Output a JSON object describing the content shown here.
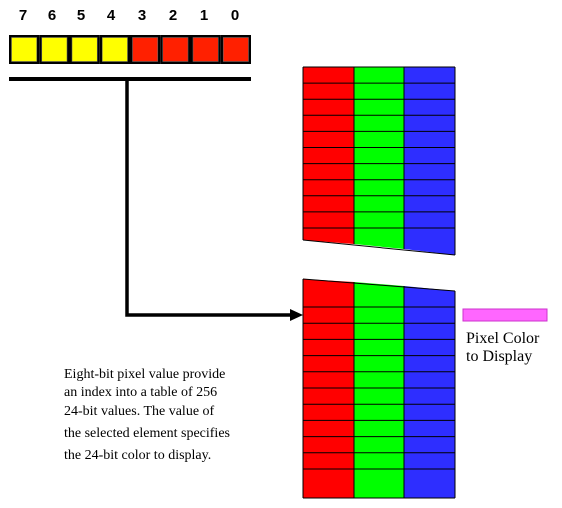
{
  "bits": {
    "numbers": [
      "7",
      "6",
      "5",
      "4",
      "3",
      "2",
      "1",
      "0"
    ],
    "cell_colors": [
      "#FFFF00",
      "#FFFF00",
      "#FFFF00",
      "#FFFF00",
      "#FF2000",
      "#FF2000",
      "#FF2000",
      "#FF2000"
    ]
  },
  "table": {
    "red": "#FF0000",
    "green": "#00FF00",
    "blue": "#2E2EFF"
  },
  "output": {
    "color": "#FF66FF",
    "label_line1": "Pixel Color",
    "label_line2": "to Display"
  },
  "description": {
    "lines": [
      "Eight-bit  pixel value provide",
      "an index into a table of 256",
      "24-bit values.  The value of",
      "the selected element specifies",
      "the 24-bit color to display."
    ]
  }
}
